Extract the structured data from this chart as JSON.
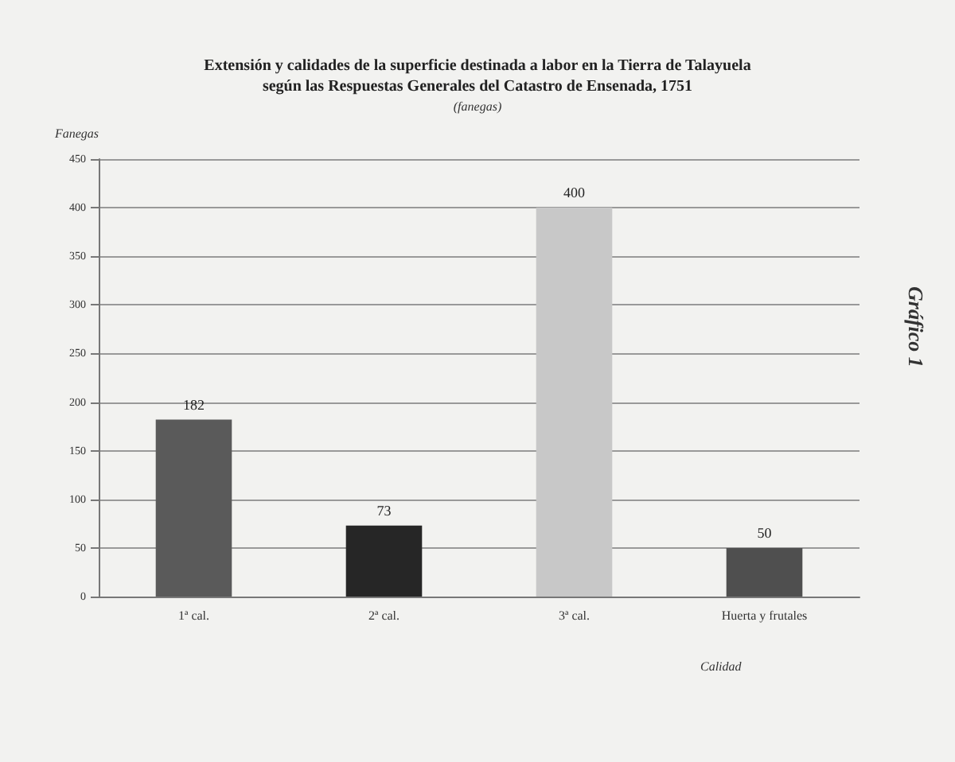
{
  "chart_data": {
    "type": "bar",
    "title": "Extensión y calidades de la superficie destinada a labor en la Tierra de Talayuela\nsegún las Respuestas Generales del Catastro de Ensenada, 1751",
    "subtitle": "(fanegas)",
    "ylabel": "Fanegas",
    "xlabel": "Calidad",
    "annotations": [
      "Gráfico 1"
    ],
    "categories": [
      "1ª cal.",
      "2ª cal.",
      "3ª cal.",
      "Huerta y frutales"
    ],
    "values": [
      182,
      73,
      400,
      50
    ],
    "colors": [
      "#5a5a5a",
      "#262626",
      "#c8c8c8",
      "#4f4f4f"
    ],
    "ylim": [
      0,
      450
    ],
    "yticks": [
      0,
      50,
      100,
      150,
      200,
      250,
      300,
      350,
      400,
      450
    ],
    "grid": "y",
    "data_labels": true
  }
}
